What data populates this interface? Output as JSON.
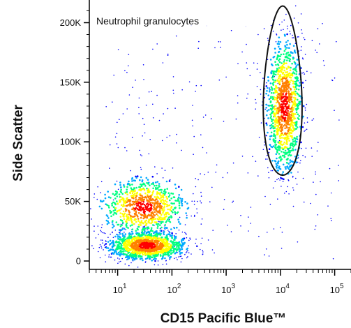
{
  "chart_data": {
    "type": "scatter",
    "subtype": "flow-cytometry density dot plot",
    "xlabel": "CD15 Pacific Blue™",
    "ylabel": "Side Scatter",
    "x_scale": "log",
    "xlim": [
      3,
      200000
    ],
    "ylim": [
      -7000,
      219000
    ],
    "x_ticks": [
      {
        "value": 10,
        "base": "10",
        "exp": "1"
      },
      {
        "value": 100,
        "base": "10",
        "exp": "2"
      },
      {
        "value": 1000,
        "base": "10",
        "exp": "3"
      },
      {
        "value": 10000,
        "base": "10",
        "exp": "4"
      },
      {
        "value": 100000,
        "base": "10",
        "exp": "5"
      }
    ],
    "y_ticks": [
      {
        "value": 0,
        "label": "0"
      },
      {
        "value": 50000,
        "label": "50K"
      },
      {
        "value": 100000,
        "label": "100K"
      },
      {
        "value": 150000,
        "label": "150K"
      },
      {
        "value": 200000,
        "label": "200K"
      }
    ],
    "populations": [
      {
        "description": "CD15-negative, low side scatter (lymphocytes)",
        "cx": 35,
        "cy": 13000,
        "sx_log": 0.35,
        "sy": 6000,
        "relative_count": 0.4
      },
      {
        "description": "CD15-negative, intermediate side scatter (monocytes)",
        "cx": 30,
        "cy": 45000,
        "sx_log": 0.4,
        "sy": 12000,
        "relative_count": 0.25
      },
      {
        "description": "CD15-positive, high side scatter (neutrophils)",
        "cx": 12000,
        "cy": 130000,
        "sx_log": 0.16,
        "sy": 28000,
        "relative_count": 0.35
      }
    ],
    "gates": [
      {
        "label": "Neutrophil granulocytes",
        "shape": "ellipse",
        "center_x": 11000,
        "center_y": 143000,
        "half_width_log": 0.35,
        "half_height": 71000
      }
    ],
    "colormap": [
      "#0000ff",
      "#00aaff",
      "#00ff80",
      "#ffff00",
      "#ff8000",
      "#ff0000"
    ],
    "grid": false,
    "legend": "none"
  }
}
